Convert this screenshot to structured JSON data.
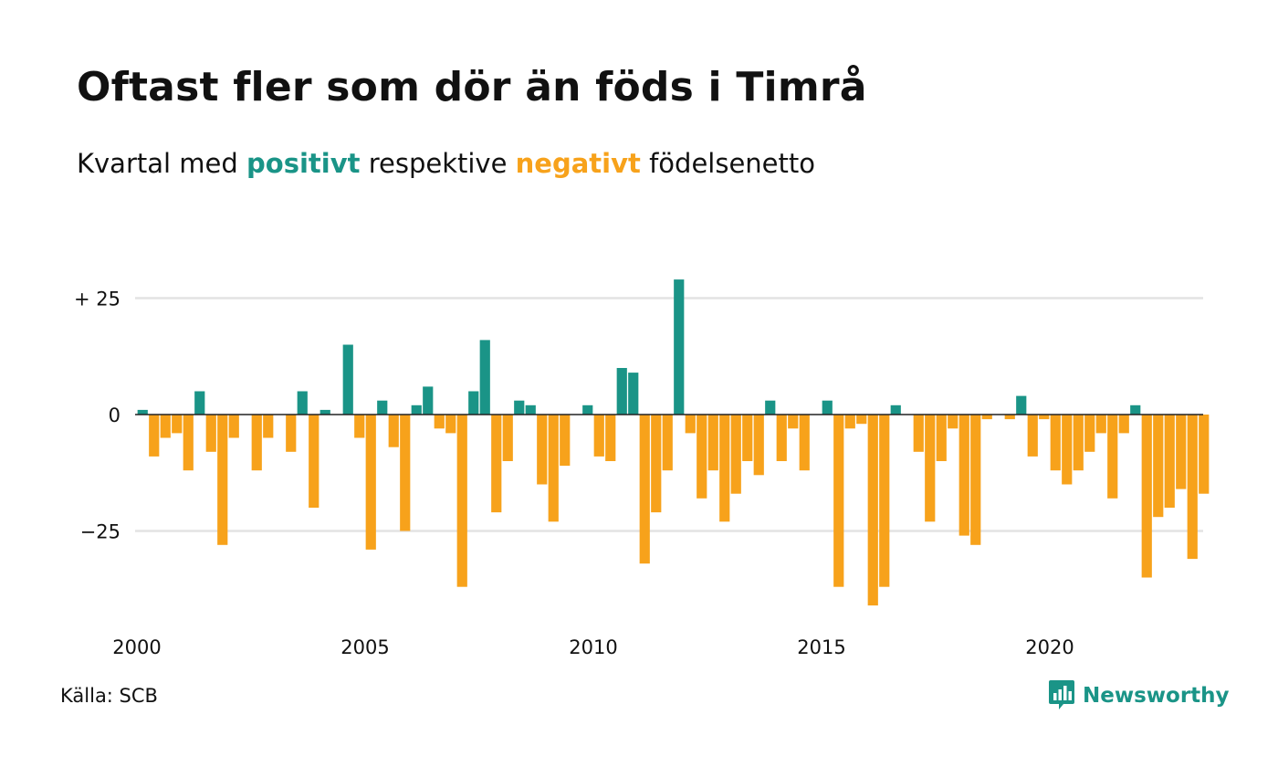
{
  "title": "Oftast fler som dör än föds i Timrå",
  "subtitle": {
    "prefix": "Kvartal med ",
    "positive": "positivt",
    "middle": " respektive ",
    "negative": "negativt",
    "suffix": " födelsenetto"
  },
  "source": "Källa: SCB",
  "brand": {
    "name": "Newsworthy",
    "icon": "newsworthy-logo-icon"
  },
  "colors": {
    "positive": "#1a9487",
    "negative": "#f7a21b",
    "grid": "#e3e3e3",
    "zero": "#222222"
  },
  "chart_data": {
    "type": "bar",
    "x_start_year": 2000,
    "periods_per_year": 4,
    "ylim": [
      -45,
      30
    ],
    "y_ticks": [
      {
        "value": 25,
        "label": "+ 25"
      },
      {
        "value": 0,
        "label": "0"
      },
      {
        "value": -25,
        "label": "−25"
      }
    ],
    "x_ticks": [
      {
        "year": 2000,
        "label": "2000"
      },
      {
        "year": 2005,
        "label": "2005"
      },
      {
        "year": 2010,
        "label": "2010"
      },
      {
        "year": 2015,
        "label": "2015"
      },
      {
        "year": 2020,
        "label": "2020"
      }
    ],
    "values": [
      1,
      -9,
      -5,
      -4,
      -12,
      5,
      -8,
      -28,
      -5,
      0,
      -12,
      -5,
      0,
      -8,
      5,
      -20,
      1,
      0,
      15,
      -5,
      -29,
      3,
      -7,
      -25,
      2,
      6,
      -3,
      -4,
      -37,
      5,
      16,
      -21,
      -10,
      3,
      2,
      -15,
      -23,
      -11,
      0,
      2,
      -9,
      -10,
      10,
      9,
      -32,
      -21,
      -12,
      29,
      -4,
      -18,
      -12,
      -23,
      -17,
      -10,
      -13,
      3,
      -10,
      -3,
      -12,
      0,
      3,
      -37,
      -3,
      -2,
      -41,
      -37,
      2,
      0,
      -8,
      -23,
      -10,
      -3,
      -26,
      -28,
      -1,
      0,
      -1,
      4,
      -9,
      -1,
      -12,
      -15,
      -12,
      -8,
      -4,
      -18,
      -4,
      2,
      -35,
      -22,
      -20,
      -16,
      -31,
      -17
    ]
  }
}
